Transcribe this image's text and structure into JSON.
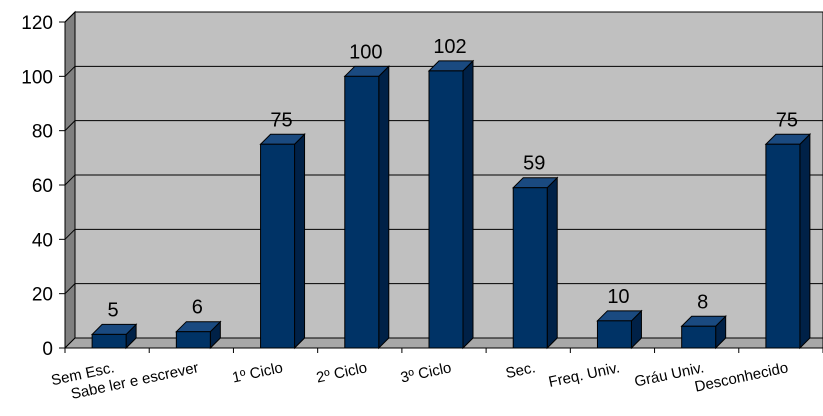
{
  "chart_data": {
    "type": "bar",
    "categories": [
      "Sem Esc.",
      "Sabe ler e escrever",
      "1º Ciclo",
      "2º Ciclo",
      "3º Ciclo",
      "Sec.",
      "Freq. Univ.",
      "Gráu Univ.",
      "Desconhecido"
    ],
    "values": [
      5,
      6,
      75,
      100,
      102,
      59,
      10,
      8,
      75
    ],
    "data_labels": [
      "5",
      "6",
      "75",
      "100",
      "102",
      "59",
      "10",
      "8",
      "75"
    ],
    "yticks": [
      "0",
      "20",
      "40",
      "60",
      "80",
      "100",
      "120"
    ],
    "ylim": [
      0,
      120
    ],
    "grid": true,
    "bar_style": "3d",
    "colors": {
      "bar_front": "#003366",
      "bar_side": "#002147",
      "bar_top": "#1a4a80",
      "plot_back": "#c0c0c0",
      "plot_side": "#808080",
      "floor": "#a8a8a8",
      "gridline": "#000000"
    }
  }
}
